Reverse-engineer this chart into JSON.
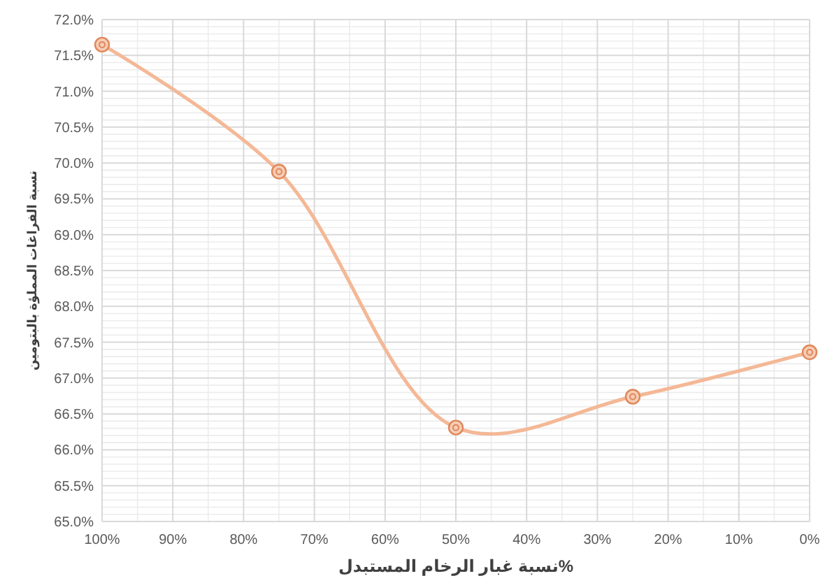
{
  "chart_data": {
    "type": "line",
    "xlabel": "نسبة غبار الرخام  المستبدل%",
    "ylabel": "نسبة الفراغات المملؤة بالبتومين",
    "x": [
      100,
      75,
      50,
      25,
      0
    ],
    "series": [
      {
        "color": "#f4b896",
        "values": [
          71.65,
          69.88,
          66.31,
          66.74,
          67.36
        ]
      }
    ],
    "xlim": [
      100,
      0
    ],
    "xticks": [
      {
        "value": 100,
        "label": "100%"
      },
      {
        "value": 90,
        "label": "90%"
      },
      {
        "value": 80,
        "label": "80%"
      },
      {
        "value": 70,
        "label": "70%"
      },
      {
        "value": 60,
        "label": "60%"
      },
      {
        "value": 50,
        "label": "50%"
      },
      {
        "value": 40,
        "label": "40%"
      },
      {
        "value": 30,
        "label": "30%"
      },
      {
        "value": 20,
        "label": "20%"
      },
      {
        "value": 10,
        "label": "10%"
      },
      {
        "value": 0,
        "label": "0%"
      }
    ],
    "ylim": [
      65,
      72
    ],
    "yticks": [
      {
        "value": 65,
        "label": "65.0%"
      },
      {
        "value": 65.5,
        "label": "65.5%"
      },
      {
        "value": 66,
        "label": "66.0%"
      },
      {
        "value": 66.5,
        "label": "66.5%"
      },
      {
        "value": 67,
        "label": "67.0%"
      },
      {
        "value": 67.5,
        "label": "67.5%"
      },
      {
        "value": 68,
        "label": "68.0%"
      },
      {
        "value": 68.5,
        "label": "68.5%"
      },
      {
        "value": 69,
        "label": "69.0%"
      },
      {
        "value": 69.5,
        "label": "69.5%"
      },
      {
        "value": 70,
        "label": "70.0%"
      },
      {
        "value": 70.5,
        "label": "70.5%"
      },
      {
        "value": 71,
        "label": "71.0%"
      },
      {
        "value": 71.5,
        "label": "71.5%"
      },
      {
        "value": 72,
        "label": "72.0%"
      }
    ],
    "grid": true,
    "marker": "circle",
    "line_style": "solid"
  }
}
